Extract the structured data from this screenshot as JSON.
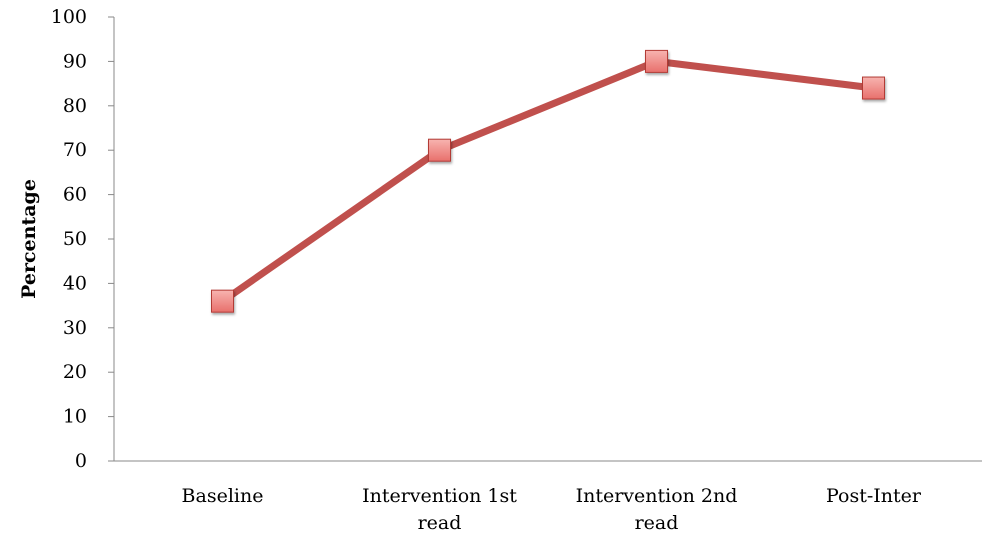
{
  "chart_data": {
    "type": "line",
    "categories": [
      [
        "Baseline"
      ],
      [
        "Intervention 1st",
        "read"
      ],
      [
        "Intervention 2nd",
        "read"
      ],
      [
        "Post-Inter"
      ]
    ],
    "series": [
      {
        "values": [
          36,
          70,
          90,
          84
        ]
      }
    ],
    "xlabel": "",
    "ylabel": "Percentage",
    "ylim": [
      0,
      100
    ],
    "yticks": [
      "0",
      "10",
      "20",
      "30",
      "40",
      "50",
      "60",
      "70",
      "80",
      "90",
      "100"
    ],
    "grid": false,
    "legend": "none",
    "colors": {
      "line": "#c0504d",
      "marker_fill": "#e8706c",
      "marker_highlight": "#f7b4b0",
      "marker_stroke": "#b23a36",
      "axis": "#888888"
    }
  }
}
